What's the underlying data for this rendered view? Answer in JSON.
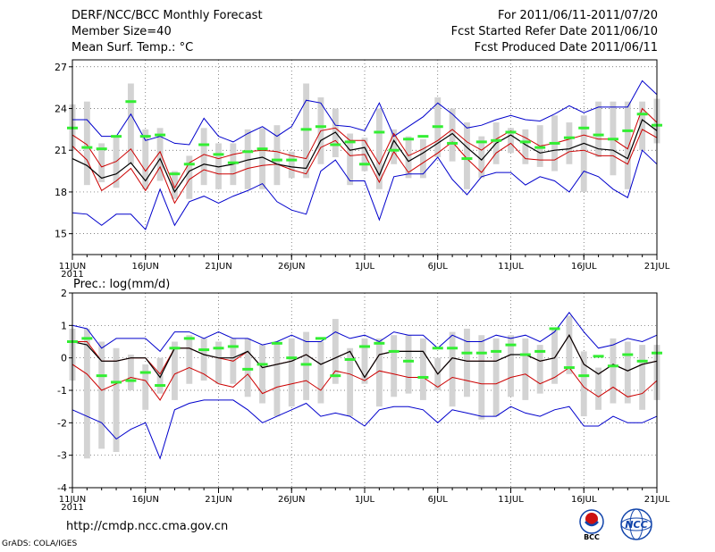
{
  "header": {
    "left": [
      "DERF/NCC/BCC Monthly Forecast",
      "Member Size=40",
      "Mean Surf. Temp.: °C"
    ],
    "right": [
      "For 2011/06/11-2011/07/20",
      "Fcst Started Refer Date 2011/06/10",
      "Fcst Produced Date 2011/06/11"
    ]
  },
  "footer": {
    "url": "http://cmdp.ncc.cma.gov.cn",
    "credit": "GrADS: COLA/IGES"
  },
  "logos": {
    "bcc_label": "BCC",
    "ncc_label": "NCC"
  },
  "colors": {
    "box": "#d3d3d3",
    "envelope": "#0000cc",
    "spread": "#cc0000",
    "mean": "#000000",
    "obs": "#33ee33",
    "grid": "#555555"
  },
  "chart_data": [
    {
      "type": "line",
      "title": "Mean Surf. Temp.: °C",
      "xlabel": "",
      "ylabel": "",
      "x_ticks": [
        {
          "day": 0,
          "label": "11JUN",
          "year": "2011"
        },
        {
          "day": 5,
          "label": "16JUN"
        },
        {
          "day": 10,
          "label": "21JUN"
        },
        {
          "day": 15,
          "label": "26JUN"
        },
        {
          "day": 20,
          "label": "1JUL"
        },
        {
          "day": 25,
          "label": "6JUL"
        },
        {
          "day": 30,
          "label": "11JUL"
        },
        {
          "day": 35,
          "label": "16JUL"
        },
        {
          "day": 40,
          "label": "21JUL"
        }
      ],
      "y_ticks": [
        15,
        18,
        21,
        24,
        27
      ],
      "xlim": [
        0,
        40
      ],
      "ylim": [
        13.5,
        27.5
      ],
      "grid": true,
      "series": [
        {
          "name": "min",
          "values": [
            16.5,
            16.4,
            15.6,
            16.4,
            16.4,
            15.3,
            18.2,
            15.6,
            17.3,
            17.7,
            17.2,
            17.7,
            18.1,
            18.6,
            17.3,
            16.7,
            16.4,
            19.5,
            20.3,
            18.8,
            18.8,
            16.0,
            19.1,
            19.3,
            19.3,
            20.5,
            18.9,
            17.8,
            19.1,
            19.4,
            19.4,
            18.5,
            19.1,
            18.8,
            18.0,
            19.5,
            19.1,
            18.2,
            17.6,
            21.0,
            20.0
          ]
        },
        {
          "name": "p25",
          "values": [
            21.3,
            20.3,
            18.1,
            18.8,
            19.7,
            18.1,
            19.8,
            17.2,
            18.9,
            19.6,
            19.3,
            19.3,
            19.7,
            19.9,
            20.0,
            19.6,
            19.3,
            21.2,
            21.7,
            20.6,
            20.7,
            18.7,
            20.9,
            19.4,
            20.1,
            20.8,
            21.6,
            20.4,
            19.4,
            20.8,
            21.5,
            20.4,
            20.3,
            20.3,
            20.9,
            21.0,
            20.6,
            20.6,
            20.0,
            22.5,
            21.9
          ]
        },
        {
          "name": "mean",
          "values": [
            20.4,
            19.9,
            19.0,
            19.3,
            20.1,
            18.8,
            20.4,
            18.0,
            19.5,
            20.0,
            19.8,
            20.0,
            20.3,
            20.5,
            20.0,
            19.8,
            19.7,
            21.7,
            22.3,
            21.0,
            21.2,
            19.2,
            21.7,
            20.2,
            20.8,
            21.5,
            22.2,
            21.2,
            20.3,
            21.5,
            22.1,
            21.4,
            20.8,
            21.0,
            21.1,
            21.5,
            21.1,
            21.0,
            20.4,
            23.2,
            22.4
          ]
        },
        {
          "name": "p75",
          "values": [
            22.1,
            21.4,
            19.8,
            20.2,
            21.1,
            19.5,
            20.9,
            18.3,
            20.1,
            20.7,
            20.4,
            20.7,
            20.9,
            21.0,
            20.9,
            20.6,
            20.4,
            22.4,
            22.6,
            21.7,
            21.7,
            20.0,
            22.2,
            20.6,
            21.1,
            21.7,
            22.5,
            21.6,
            21.0,
            21.8,
            22.4,
            21.9,
            21.3,
            21.5,
            21.8,
            22.1,
            21.8,
            21.8,
            21.1,
            24.0,
            23.0
          ]
        },
        {
          "name": "max",
          "values": [
            23.2,
            23.2,
            22.0,
            22.0,
            23.6,
            21.7,
            22.0,
            21.5,
            21.4,
            23.3,
            22.0,
            21.6,
            22.2,
            22.7,
            22.0,
            22.7,
            24.6,
            24.4,
            22.8,
            22.7,
            22.4,
            24.4,
            22.0,
            22.7,
            23.4,
            24.4,
            23.6,
            22.6,
            22.8,
            23.2,
            23.5,
            23.2,
            23.1,
            23.6,
            24.2,
            23.7,
            24.1,
            24.1,
            24.1,
            26.0,
            25.0
          ]
        },
        {
          "name": "box_low",
          "values": [
            21.0,
            18.5,
            18.7,
            18.3,
            20.0,
            18.2,
            18.8,
            17.5,
            17.5,
            18.5,
            18.2,
            18.5,
            18.2,
            18.2,
            18.5,
            19.0,
            19.0,
            20.0,
            20.5,
            18.5,
            19.5,
            18.2,
            20.0,
            19.0,
            19.0,
            20.5,
            20.2,
            18.2,
            19.0,
            20.0,
            20.8,
            20.0,
            19.8,
            19.5,
            20.0,
            18.0,
            20.5,
            19.2,
            18.2,
            21.0,
            21.5
          ]
        },
        {
          "name": "box_high",
          "values": [
            24.3,
            24.5,
            21.5,
            22.0,
            25.8,
            22.5,
            22.6,
            19.5,
            20.6,
            22.6,
            21.5,
            21.5,
            22.5,
            22.6,
            22.8,
            20.9,
            25.8,
            24.8,
            24.0,
            22.2,
            21.9,
            24.0,
            22.5,
            22.0,
            21.8,
            24.8,
            24.0,
            23.0,
            22.0,
            23.0,
            22.6,
            22.5,
            22.8,
            23.5,
            23.0,
            23.5,
            24.5,
            24.5,
            24.5,
            24.5,
            24.7
          ]
        },
        {
          "name": "obs",
          "values": [
            22.6,
            21.2,
            21.1,
            22.0,
            24.5,
            22.0,
            22.1,
            19.3,
            20.0,
            21.4,
            20.7,
            20.1,
            20.9,
            21.1,
            20.3,
            20.3,
            22.5,
            22.7,
            21.4,
            21.6,
            20.0,
            22.3,
            21.0,
            21.8,
            22.0,
            22.7,
            21.5,
            20.4,
            21.6,
            21.7,
            22.3,
            21.6,
            21.2,
            21.5,
            21.9,
            22.6,
            22.1,
            21.8,
            22.4,
            23.6,
            22.8
          ]
        }
      ]
    },
    {
      "type": "line",
      "title": "Prec.: log(mm/d)",
      "xlabel": "",
      "ylabel": "",
      "x_ticks": [
        {
          "day": 0,
          "label": "11JUN",
          "year": "2011"
        },
        {
          "day": 5,
          "label": "16JUN"
        },
        {
          "day": 10,
          "label": "21JUN"
        },
        {
          "day": 15,
          "label": "26JUN"
        },
        {
          "day": 20,
          "label": "1JUL"
        },
        {
          "day": 25,
          "label": "6JUL"
        },
        {
          "day": 30,
          "label": "11JUL"
        },
        {
          "day": 35,
          "label": "16JUL"
        },
        {
          "day": 40,
          "label": "21JUL"
        }
      ],
      "y_ticks": [
        -4,
        -3,
        -2,
        -1,
        0,
        1,
        2
      ],
      "xlim": [
        0,
        40
      ],
      "ylim": [
        -4,
        2
      ],
      "grid": true,
      "series": [
        {
          "name": "min",
          "values": [
            -1.6,
            -1.8,
            -2.0,
            -2.5,
            -2.2,
            -2.0,
            -3.1,
            -1.6,
            -1.4,
            -1.3,
            -1.3,
            -1.3,
            -1.6,
            -2.0,
            -1.8,
            -1.6,
            -1.4,
            -1.8,
            -1.7,
            -1.8,
            -2.1,
            -1.6,
            -1.5,
            -1.5,
            -1.6,
            -2.0,
            -1.6,
            -1.7,
            -1.8,
            -1.8,
            -1.5,
            -1.7,
            -1.8,
            -1.6,
            -1.5,
            -2.1,
            -2.1,
            -1.8,
            -2.0,
            -2.0,
            -1.8
          ]
        },
        {
          "name": "p25",
          "values": [
            -0.2,
            -0.5,
            -1.0,
            -0.8,
            -0.6,
            -0.7,
            -1.3,
            -0.5,
            -0.3,
            -0.5,
            -0.8,
            -0.9,
            -0.5,
            -1.1,
            -0.9,
            -0.8,
            -0.7,
            -1.0,
            -0.4,
            -0.5,
            -0.7,
            -0.4,
            -0.5,
            -0.6,
            -0.6,
            -0.9,
            -0.6,
            -0.7,
            -0.8,
            -0.8,
            -0.6,
            -0.5,
            -0.8,
            -0.6,
            -0.3,
            -0.9,
            -1.2,
            -0.9,
            -1.2,
            -1.1,
            -0.7
          ]
        },
        {
          "name": "mean",
          "values": [
            0.5,
            0.4,
            -0.1,
            -0.1,
            0.0,
            0.0,
            -0.6,
            0.3,
            0.3,
            0.1,
            0.0,
            0.0,
            0.2,
            -0.3,
            -0.2,
            -0.1,
            0.1,
            -0.2,
            0.0,
            0.2,
            -0.6,
            0.1,
            0.2,
            0.2,
            0.2,
            -0.5,
            0.0,
            -0.1,
            -0.1,
            -0.1,
            0.1,
            0.1,
            -0.1,
            0.0,
            0.7,
            -0.2,
            -0.5,
            -0.2,
            -0.4,
            -0.2,
            -0.1
          ]
        },
        {
          "name": "p75",
          "values": [
            0.5,
            0.5,
            -0.1,
            -0.1,
            0.0,
            0.0,
            -0.5,
            0.3,
            0.3,
            0.1,
            0.0,
            -0.1,
            0.2,
            -0.3,
            -0.2,
            -0.1,
            0.1,
            -0.2,
            0.0,
            0.2,
            -0.6,
            0.1,
            0.2,
            0.2,
            0.2,
            -0.5,
            0.0,
            -0.1,
            -0.1,
            -0.1,
            0.1,
            0.1,
            -0.1,
            0.0,
            0.7,
            -0.2,
            -0.5,
            -0.2,
            -0.4,
            -0.2,
            -0.1
          ]
        },
        {
          "name": "max",
          "values": [
            1.0,
            0.9,
            0.3,
            0.6,
            0.6,
            0.6,
            0.2,
            0.8,
            0.8,
            0.6,
            0.8,
            0.6,
            0.6,
            0.4,
            0.5,
            0.7,
            0.5,
            0.5,
            0.8,
            0.6,
            0.7,
            0.5,
            0.8,
            0.7,
            0.7,
            0.3,
            0.7,
            0.5,
            0.5,
            0.7,
            0.6,
            0.7,
            0.5,
            0.8,
            1.4,
            0.8,
            0.3,
            0.4,
            0.6,
            0.5,
            0.7
          ]
        },
        {
          "name": "box_low",
          "values": [
            -0.7,
            -3.1,
            -2.8,
            -2.9,
            -1.0,
            -1.6,
            -1.1,
            -1.3,
            -0.8,
            -0.7,
            -0.8,
            -0.8,
            -1.2,
            -1.4,
            -1.8,
            -1.5,
            -1.3,
            -1.4,
            -0.8,
            -1.8,
            -0.8,
            -1.5,
            -1.2,
            -1.1,
            -1.3,
            -1.0,
            -1.5,
            -1.2,
            -1.9,
            -1.8,
            -1.2,
            -1.3,
            -1.1,
            -0.8,
            -0.5,
            -1.8,
            -1.6,
            -1.4,
            -1.4,
            -1.6,
            -1.3
          ]
        },
        {
          "name": "box_high",
          "values": [
            0.9,
            0.9,
            0.5,
            0.3,
            0.1,
            -0.2,
            0.0,
            0.5,
            0.7,
            0.6,
            0.5,
            0.6,
            0.6,
            0.4,
            0.5,
            0.6,
            0.8,
            0.5,
            1.2,
            0.3,
            0.6,
            0.6,
            0.7,
            0.7,
            0.6,
            0.0,
            0.8,
            0.9,
            0.7,
            0.6,
            0.7,
            0.6,
            0.4,
            0.9,
            1.3,
            0.2,
            -0.3,
            0.6,
            0.5,
            0.4,
            0.4
          ]
        },
        {
          "name": "obs",
          "values": [
            0.5,
            0.6,
            -0.55,
            -0.75,
            -0.7,
            -0.45,
            -0.85,
            0.3,
            0.6,
            0.25,
            0.3,
            0.35,
            -0.35,
            -0.2,
            0.45,
            0.0,
            -0.2,
            0.6,
            -0.55,
            -0.05,
            0.35,
            0.45,
            0.2,
            -0.1,
            -0.6,
            0.3,
            0.3,
            0.15,
            0.15,
            0.2,
            0.4,
            0.1,
            0.2,
            0.9,
            -0.3,
            -0.55,
            0.05,
            -0.25,
            0.1,
            -0.1,
            0.15
          ]
        }
      ]
    }
  ]
}
